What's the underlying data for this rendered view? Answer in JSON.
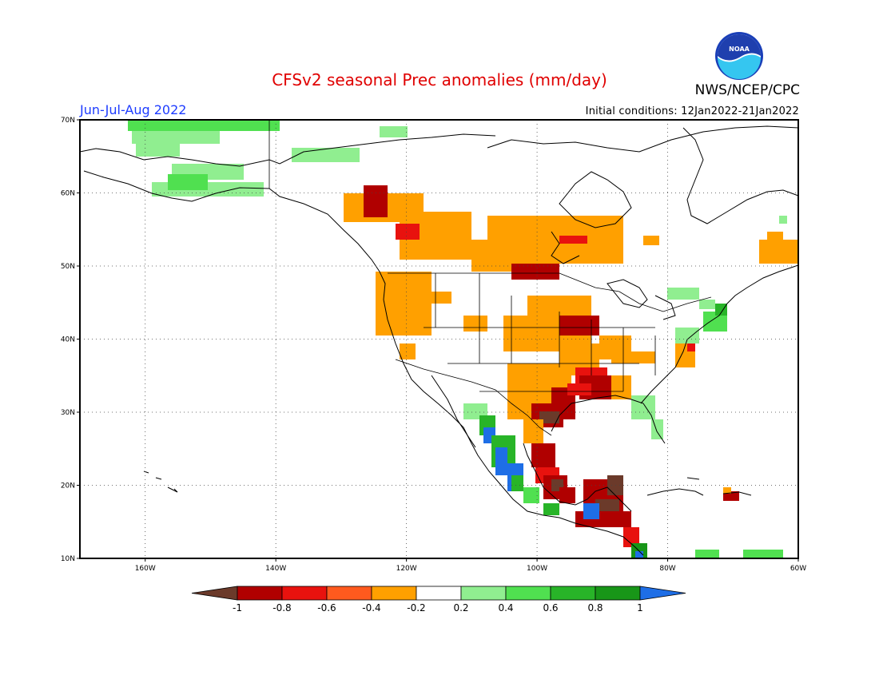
{
  "header": {
    "title": "CFSv2 seasonal Prec anomalies (mm/day)",
    "org": "NWS/NCEP/CPC",
    "period": "Jun-Jul-Aug 2022",
    "initial_conditions": "Initial conditions: 12Jan2022-21Jan2022",
    "logo_text": "NOAA"
  },
  "map": {
    "lon_ticks": [
      "160W",
      "140W",
      "120W",
      "100W",
      "80W",
      "60W"
    ],
    "lat_ticks": [
      "70N",
      "60N",
      "50N",
      "40N",
      "30N",
      "20N",
      "10N"
    ]
  },
  "colorbar": {
    "labels": [
      "-1",
      "-0.8",
      "-0.6",
      "-0.4",
      "-0.2",
      "0.2",
      "0.4",
      "0.6",
      "0.8",
      "1"
    ],
    "colors": [
      "#6b3a2a",
      "#b00000",
      "#e8120e",
      "#ff5a1e",
      "#ffa000",
      "#ffffff",
      "#90ee90",
      "#50e050",
      "#28b428",
      "#189618",
      "#1e6ee6"
    ]
  }
}
